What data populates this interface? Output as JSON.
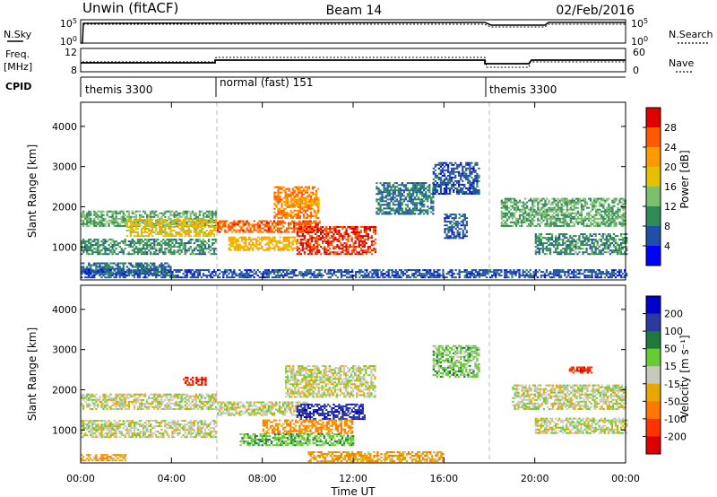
{
  "header": {
    "station": "Unwin (fitACF)",
    "beam": "Beam 14",
    "date": "02/Feb/2016"
  },
  "status_panels": {
    "nsky_label": "N.Sky",
    "nsearch_label": "N.Search",
    "noise_ticks": [
      "10^5",
      "10^0"
    ],
    "freq_label": "Freq.",
    "freq_unit": "[MHz]",
    "freq_ticks": [
      "12",
      "8"
    ],
    "nave_label": "Nave",
    "nave_ticks": [
      "60",
      "0"
    ],
    "cpid_label": "CPID",
    "cpid_segments": [
      {
        "label": "themis 3300",
        "start": 0,
        "end": 6
      },
      {
        "label": "normal (fast) 151",
        "start": 6,
        "end": 18
      },
      {
        "label": "themis 3300",
        "start": 18,
        "end": 24
      }
    ]
  },
  "colors": {
    "power_scale": [
      "#0000ff",
      "#1f4fa8",
      "#2e8b57",
      "#7cc06a",
      "#e6c000",
      "#ff9a00",
      "#ff5a00",
      "#e00000"
    ],
    "velocity_scale": [
      "#0000cc",
      "#2a3aa0",
      "#1f7a3a",
      "#66cc33",
      "#c8c8bc",
      "#e6a800",
      "#ff7700",
      "#ff3300",
      "#dd0000"
    ],
    "ground_scatter": "#c8c8bc"
  },
  "chart_data": [
    {
      "type": "heatmap",
      "title": "",
      "xlabel": "",
      "ylabel": "Slant Range [km]",
      "xlim": [
        0,
        24
      ],
      "ylim": [
        180,
        4600
      ],
      "yticks": [
        1000,
        2000,
        3000,
        4000
      ],
      "colorbar": {
        "label": "Power [dB]",
        "ticks": [
          "4",
          "8",
          "12",
          "16",
          "20",
          "24",
          "28"
        ],
        "range": [
          0,
          32
        ]
      },
      "grid_lines_x": [
        6,
        18
      ],
      "regions": [
        {
          "t0": 0.0,
          "t1": 6.0,
          "r0": 1500,
          "r1": 1900,
          "value": 12
        },
        {
          "t0": 0.0,
          "t1": 6.0,
          "r0": 800,
          "r1": 1200,
          "value": 10
        },
        {
          "t0": 0.0,
          "t1": 4.0,
          "r0": 300,
          "r1": 600,
          "value": 8
        },
        {
          "t0": 2.0,
          "t1": 6.0,
          "r0": 1250,
          "r1": 1700,
          "value": 18
        },
        {
          "t0": 6.0,
          "t1": 10.5,
          "r0": 1350,
          "r1": 1650,
          "value": 26
        },
        {
          "t0": 6.5,
          "t1": 9.5,
          "r0": 900,
          "r1": 1250,
          "value": 20
        },
        {
          "t0": 8.5,
          "t1": 10.5,
          "r0": 1700,
          "r1": 2500,
          "value": 24
        },
        {
          "t0": 9.5,
          "t1": 13.0,
          "r0": 800,
          "r1": 1500,
          "value": 28
        },
        {
          "t0": 9.0,
          "t1": 10.5,
          "r0": 2000,
          "r1": 2200,
          "value": 20
        },
        {
          "t0": 13.0,
          "t1": 15.5,
          "r0": 1800,
          "r1": 2600,
          "value": 8
        },
        {
          "t0": 15.5,
          "t1": 17.5,
          "r0": 2300,
          "r1": 3100,
          "value": 6
        },
        {
          "t0": 16.0,
          "t1": 17.0,
          "r0": 1200,
          "r1": 1800,
          "value": 6
        },
        {
          "t0": 18.5,
          "t1": 24.0,
          "r0": 1500,
          "r1": 2200,
          "value": 12
        },
        {
          "t0": 20.0,
          "t1": 24.0,
          "r0": 800,
          "r1": 1300,
          "value": 10
        },
        {
          "t0": 0.0,
          "t1": 24.0,
          "r0": 220,
          "r1": 420,
          "value": 6
        }
      ]
    },
    {
      "type": "heatmap",
      "title": "",
      "xlabel": "Time UT",
      "ylabel": "Slant Range [km]",
      "xlim": [
        0,
        24
      ],
      "ylim": [
        180,
        4600
      ],
      "yticks": [
        1000,
        2000,
        3000,
        4000
      ],
      "xticks": [
        "00:00",
        "04:00",
        "08:00",
        "12:00",
        "16:00",
        "20:00",
        "00:00"
      ],
      "colorbar": {
        "label": "Velocity [m s⁻¹]",
        "ticks": [
          "200",
          "100",
          "50",
          "15",
          "-15",
          "-50",
          "-100",
          "-200"
        ]
      },
      "grid_lines_x": [
        6,
        18
      ],
      "regions": [
        {
          "t0": 0.0,
          "t1": 6.0,
          "r0": 1500,
          "r1": 1900,
          "value": 0
        },
        {
          "t0": 0.0,
          "t1": 6.0,
          "r0": 800,
          "r1": 1250,
          "value": 0
        },
        {
          "t0": 6.0,
          "t1": 10.0,
          "r0": 1350,
          "r1": 1700,
          "value": 0
        },
        {
          "t0": 9.5,
          "t1": 12.5,
          "r0": 1250,
          "r1": 1650,
          "value": 180
        },
        {
          "t0": 8.0,
          "t1": 12.0,
          "r0": 900,
          "r1": 1250,
          "value": -60
        },
        {
          "t0": 7.0,
          "t1": 12.0,
          "r0": 600,
          "r1": 900,
          "value": 40
        },
        {
          "t0": 9.0,
          "t1": 13.0,
          "r0": 1800,
          "r1": 2600,
          "value": 0
        },
        {
          "t0": 10.0,
          "t1": 16.0,
          "r0": 200,
          "r1": 450,
          "value": -40
        },
        {
          "t0": 15.5,
          "t1": 17.5,
          "r0": 2300,
          "r1": 3100,
          "value": 30
        },
        {
          "t0": 19.0,
          "t1": 24.0,
          "r0": 1500,
          "r1": 2100,
          "value": 0
        },
        {
          "t0": 20.0,
          "t1": 24.0,
          "r0": 900,
          "r1": 1300,
          "value": 0
        },
        {
          "t0": 21.5,
          "t1": 22.5,
          "r0": 2400,
          "r1": 2550,
          "value": -180
        },
        {
          "t0": 4.5,
          "t1": 5.5,
          "r0": 2100,
          "r1": 2300,
          "value": -200
        },
        {
          "t0": 0.0,
          "t1": 2.0,
          "r0": 220,
          "r1": 400,
          "value": -40
        }
      ]
    }
  ]
}
